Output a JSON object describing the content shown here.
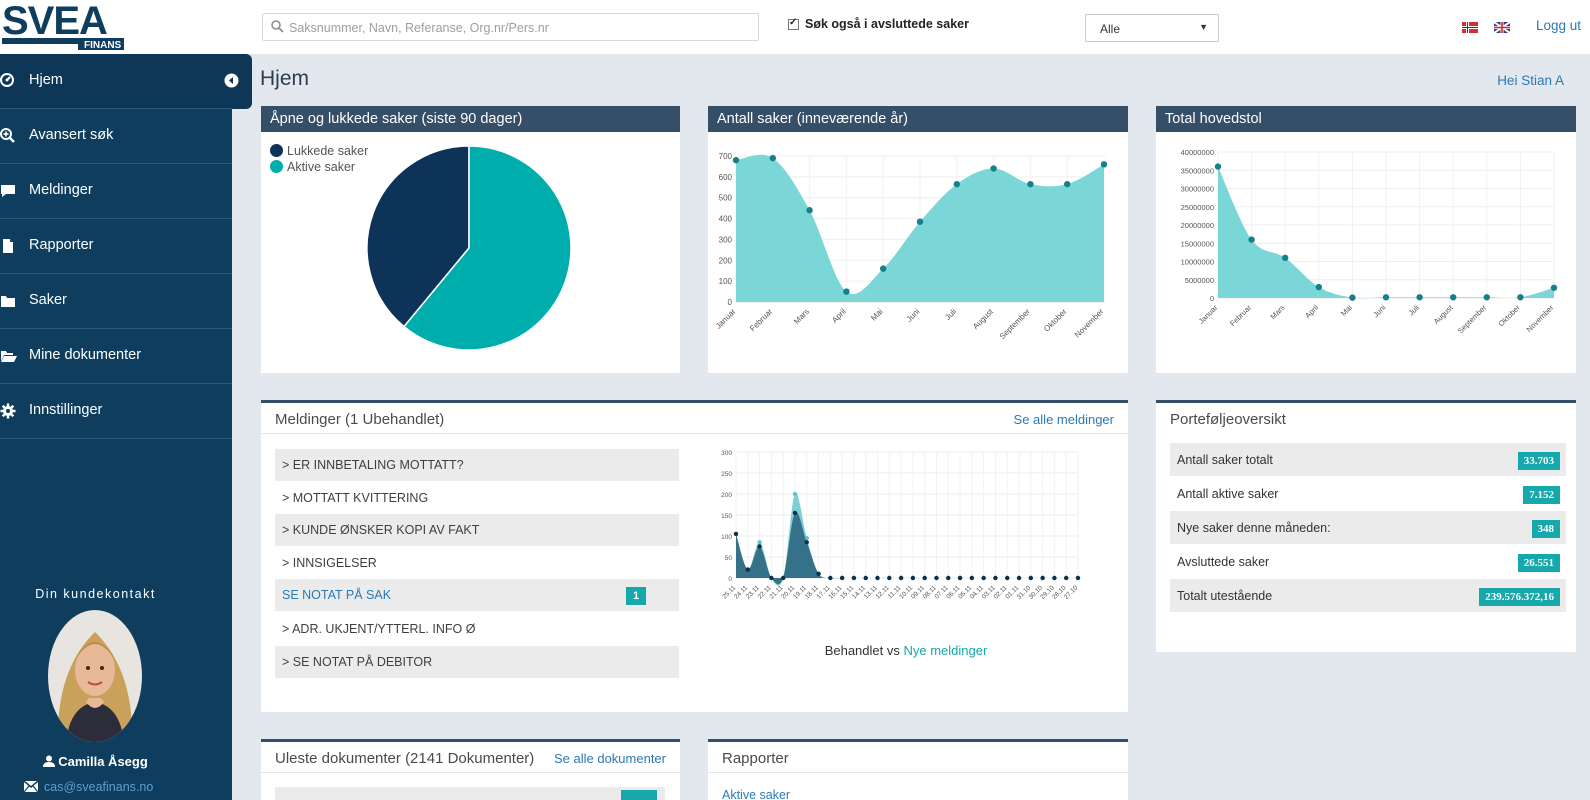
{
  "brand": {
    "name": "SVEA",
    "sub": "FINANS"
  },
  "topbar": {
    "search_placeholder": "Saksnummer, Navn, Referanse, Org.nr/Pers.nr",
    "also_closed_label": "Søk også i avsluttede saker",
    "also_closed_checked": true,
    "filter_value": "Alle",
    "logout_label": "Logg ut"
  },
  "sidebar": {
    "items": [
      {
        "label": "Hjem",
        "icon": "dashboard-icon"
      },
      {
        "label": "Avansert søk",
        "icon": "search-plus-icon"
      },
      {
        "label": "Meldinger",
        "icon": "chat-icon"
      },
      {
        "label": "Rapporter",
        "icon": "file-icon"
      },
      {
        "label": "Saker",
        "icon": "folder-icon"
      },
      {
        "label": "Mine dokumenter",
        "icon": "folder-open-icon"
      },
      {
        "label": "Innstillinger",
        "icon": "gear-icon"
      }
    ],
    "contact_title": "Din kundekontakt",
    "contact_name": "Camilla Åsegg",
    "contact_email": "cas@sveafinans.no"
  },
  "main": {
    "title": "Hjem",
    "greeting_prefix": "Hei",
    "greeting_name": "Stian A"
  },
  "colors": {
    "navy": "#0e3d5e",
    "teal": "#16a8aa",
    "pie_closed": "#0e3358",
    "area": "#7bd6d8",
    "header": "#354f68"
  },
  "panels": {
    "open_closed": {
      "title": "Åpne og lukkede saker (siste 90 dager)",
      "legend": [
        "Lukkede saker",
        "Aktive saker"
      ]
    },
    "count": {
      "title": "Antall saker (inneværende år)"
    },
    "principal": {
      "title": "Total hovedstol"
    },
    "messages": {
      "title": "Meldinger (1 Ubehandlet)",
      "see_all": "Se alle meldinger",
      "rows": [
        {
          "label": "> ER INNBETALING MOTTATT?"
        },
        {
          "label": "> MOTTATT KVITTERING"
        },
        {
          "label": "> KUNDE ØNSKER KOPI AV FAKT"
        },
        {
          "label": "> INNSIGELSER"
        },
        {
          "label": "SE NOTAT PÅ SAK",
          "count": "1"
        },
        {
          "label": "> ADR. UKJENT/YTTERL. INFO Ø"
        },
        {
          "label": "> SE NOTAT PÅ DEBITOR"
        }
      ],
      "chart_caption_a": "Behandlet vs",
      "chart_caption_b": "Nye meldinger"
    },
    "portfolio": {
      "title": "Porteføljeoversikt",
      "rows": [
        {
          "label": "Antall saker totalt",
          "value": "33.703"
        },
        {
          "label": "Antall aktive saker",
          "value": "7.152"
        },
        {
          "label": "Nye saker denne måneden:",
          "value": "348"
        },
        {
          "label": "Avsluttede saker",
          "value": "26.551"
        },
        {
          "label": "Totalt utestående",
          "value": "239.576.372,16"
        }
      ]
    },
    "unread": {
      "title": "Uleste dokumenter (2141 Dokumenter)",
      "see_all": "Se alle dokumenter"
    },
    "reports": {
      "title": "Rapporter",
      "first_link": "Aktive saker"
    }
  },
  "chart_data": [
    {
      "type": "pie",
      "title": "Åpne og lukkede saker (siste 90 dager)",
      "labels": [
        "Lukkede saker",
        "Aktive saker"
      ],
      "values": [
        39,
        61
      ],
      "colors": [
        "#0e3358",
        "#00adad"
      ]
    },
    {
      "type": "area",
      "title": "Antall saker (inneværende år)",
      "categories": [
        "Januar",
        "Februar",
        "Mars",
        "April",
        "Mai",
        "Juni",
        "Juli",
        "August",
        "September",
        "Oktober",
        "November"
      ],
      "values": [
        680,
        690,
        440,
        50,
        160,
        385,
        565,
        640,
        565,
        565,
        660
      ],
      "yticks": [
        "0",
        "100",
        "200",
        "300",
        "400",
        "500",
        "600",
        "700"
      ],
      "ylim": [
        0,
        700
      ]
    },
    {
      "type": "area",
      "title": "Total hovedstol",
      "categories": [
        "Januar",
        "Februar",
        "Mars",
        "April",
        "Mai",
        "Juni",
        "Juli",
        "August",
        "September",
        "Oktober",
        "November"
      ],
      "values": [
        36000000,
        16000000,
        11000000,
        3000000,
        100000,
        200000,
        200000,
        200000,
        200000,
        200000,
        2800000
      ],
      "yticks": [
        "0",
        "5000000",
        "10000000",
        "15000000",
        "20000000",
        "25000000",
        "30000000",
        "35000000",
        "40000000"
      ],
      "ylim": [
        0,
        40000000
      ]
    },
    {
      "type": "area",
      "title": "",
      "categories": [
        "25.11",
        "24.11",
        "23.11",
        "22.11",
        "21.11",
        "20.11",
        "19.11",
        "18.11",
        "17.11",
        "16.11",
        "15.11",
        "14.11",
        "13.11",
        "12.11",
        "11.11",
        "10.11",
        "09.11",
        "08.11",
        "07.11",
        "06.11",
        "05.11",
        "04.11",
        "03.11",
        "02.11",
        "01.11",
        "31.10",
        "30.10",
        "29.10",
        "28.10",
        "27.10"
      ],
      "series": [
        {
          "name": "Nye meldinger",
          "values": [
            105,
            20,
            85,
            0,
            0,
            200,
            95,
            10,
            0,
            0,
            0,
            0,
            0,
            0,
            0,
            0,
            0,
            0,
            0,
            0,
            0,
            0,
            0,
            0,
            0,
            0,
            0,
            0,
            0,
            0
          ]
        },
        {
          "name": "Behandlet",
          "values": [
            105,
            20,
            75,
            0,
            0,
            155,
            85,
            10,
            0,
            0,
            0,
            0,
            0,
            0,
            0,
            0,
            0,
            0,
            0,
            0,
            0,
            0,
            0,
            0,
            0,
            0,
            0,
            0,
            0,
            0
          ]
        }
      ],
      "yticks": [
        "0",
        "50",
        "100",
        "150",
        "200",
        "250",
        "300"
      ],
      "ylim": [
        0,
        300
      ]
    }
  ]
}
